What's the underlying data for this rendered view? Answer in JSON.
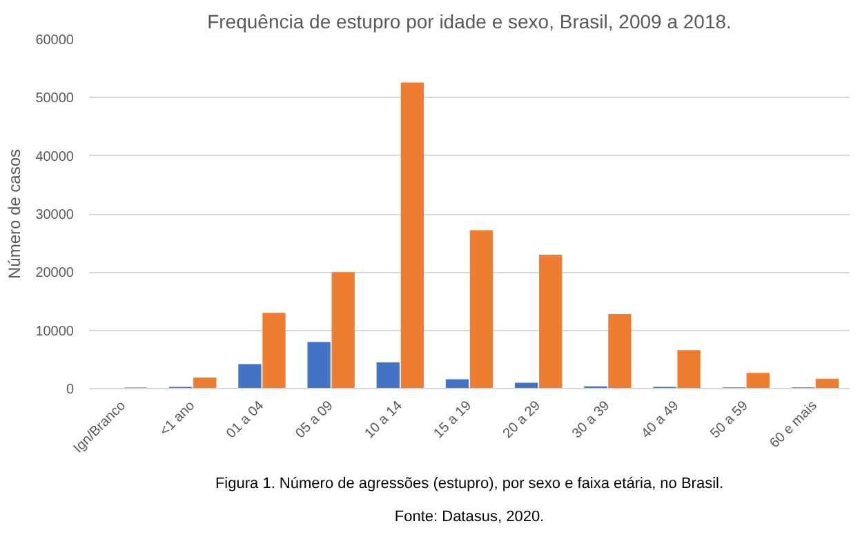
{
  "chart_data": {
    "type": "bar",
    "title": "Frequência de estupro por idade e sexo, Brasil, 2009 a 2018.",
    "ylabel": "Número de casos",
    "categories": [
      "Ign/Branco",
      "<1 ano",
      "01 a 04",
      "05 a 09",
      "10 a 14",
      "15 a 19",
      "20 a 29",
      "30 a 39",
      "40 a 49",
      "50 a 59",
      "60 e mais"
    ],
    "series": [
      {
        "color": "#4472c4",
        "values": [
          0,
          300,
          4200,
          8000,
          4500,
          1600,
          1000,
          400,
          300,
          200,
          200
        ]
      },
      {
        "color": "#ed7d31",
        "values": [
          200,
          1900,
          13000,
          20000,
          52600,
          27200,
          23000,
          12800,
          6600,
          2700,
          1700
        ]
      }
    ],
    "ylim": [
      0,
      60000
    ],
    "yticks": [
      0,
      10000,
      20000,
      30000,
      40000,
      50000,
      60000
    ],
    "grid": "y",
    "annotations": [
      "Figura 1. Número de agressões (estupro), por sexo e faixa etária, no Brasil.",
      "Fonte: Datasus, 2020."
    ]
  }
}
